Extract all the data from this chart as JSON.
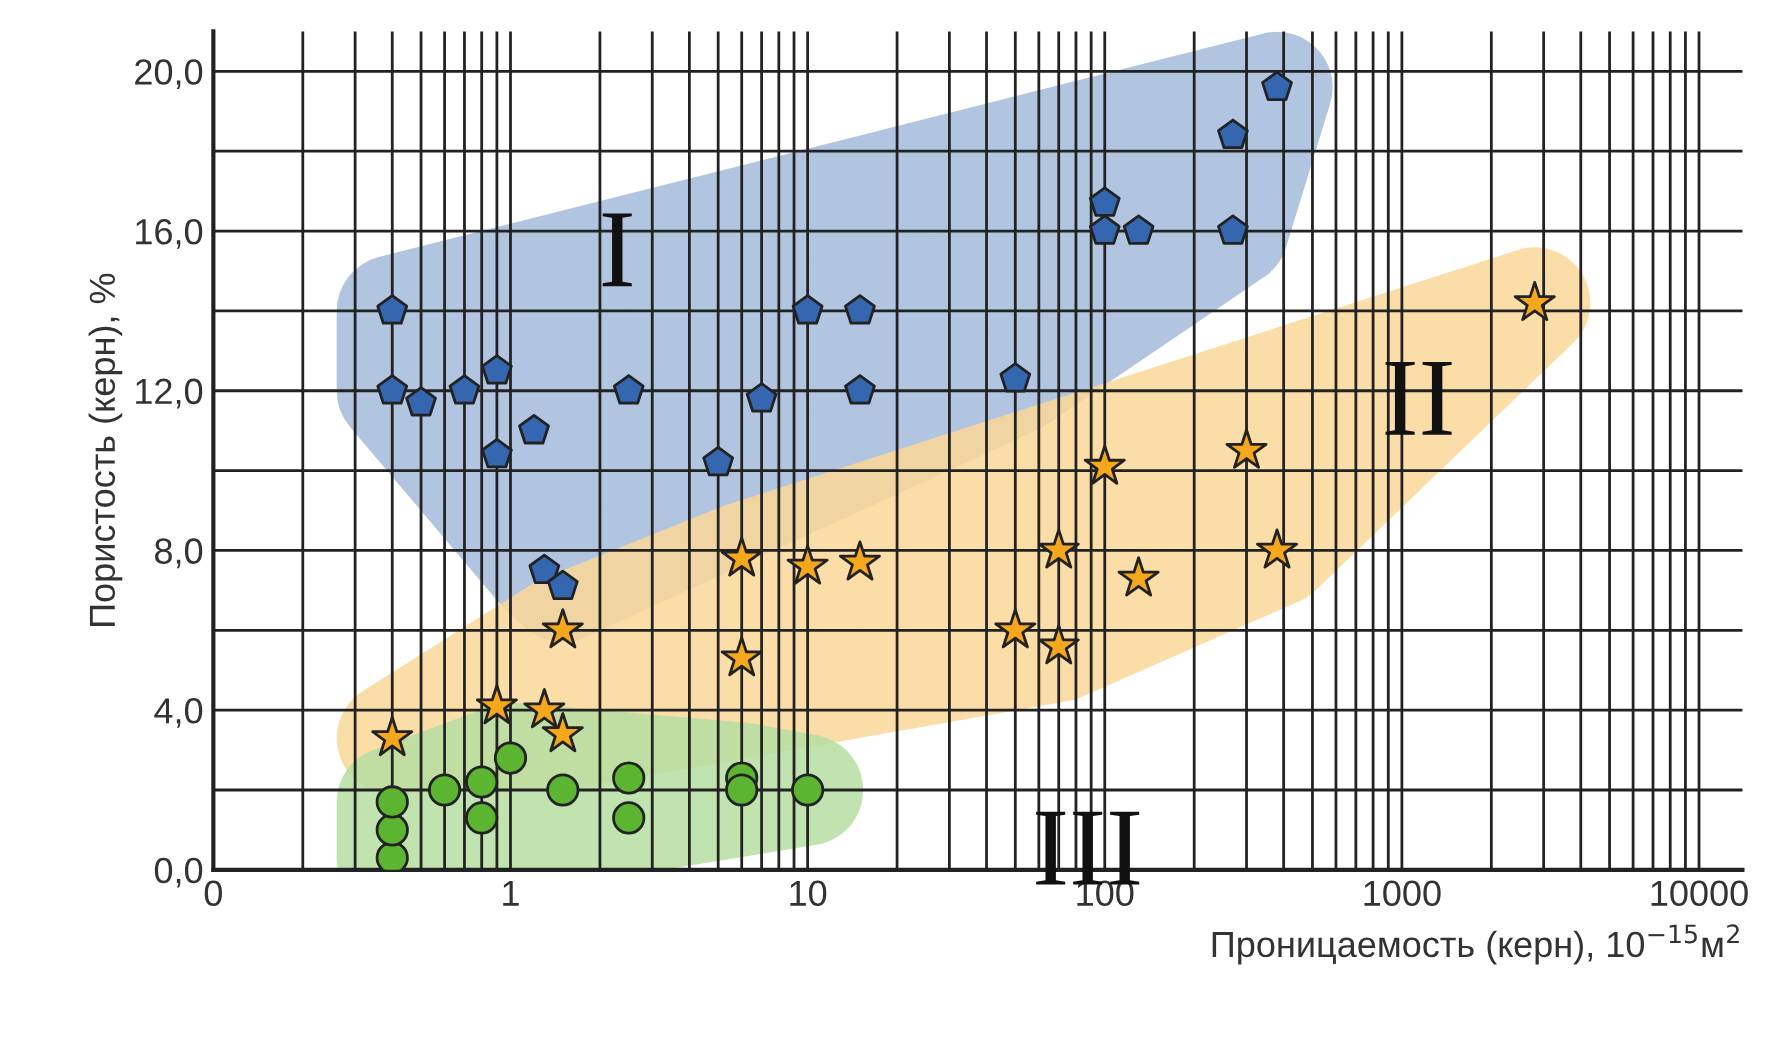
{
  "chart_data": {
    "type": "scatter",
    "xlabel": "Проницаемость (керн), 10$^{−15}$м$^{2}$",
    "ylabel": "Пористость (керн), %",
    "log": "x",
    "grid": true,
    "legend": false,
    "xlim": [
      0.1,
      14000
    ],
    "xticks": [
      {
        "value": 0.1,
        "label": "0"
      },
      1,
      10,
      100,
      1000,
      10000
    ],
    "ylim": [
      0,
      21
    ],
    "yticks": [
      {
        "value": 0,
        "label": "0,0"
      },
      {
        "value": 2,
        "label": null
      },
      {
        "value": 4,
        "label": "4,0"
      },
      {
        "value": 6,
        "label": null
      },
      {
        "value": 8,
        "label": "8,0"
      },
      {
        "value": 10,
        "label": null
      },
      {
        "value": 12,
        "label": "12,0"
      },
      {
        "value": 14,
        "label": null
      },
      {
        "value": 16,
        "label": "16,0"
      },
      {
        "value": 18,
        "label": null
      },
      {
        "value": 20,
        "label": "20,0"
      }
    ],
    "series": [
      {
        "color": "#3566b0",
        "x": [
          0.4,
          0.4,
          0.5,
          0.7,
          0.9,
          0.9,
          1.2,
          1.3,
          1.5,
          2.5,
          5,
          7,
          10,
          15,
          15,
          50,
          100,
          100,
          130,
          270,
          270,
          380
        ],
        "values": [
          14.0,
          12.0,
          11.7,
          12.0,
          12.5,
          10.4,
          11.0,
          7.5,
          7.1,
          12.0,
          10.2,
          11.8,
          14.0,
          14.0,
          12.0,
          12.3,
          16.7,
          16.0,
          16.0,
          18.4,
          16.0,
          19.6
        ]
      },
      {
        "color": "#f6a81c",
        "marker": "star",
        "x": [
          0.4,
          0.9,
          1.3,
          1.5,
          1.5,
          6,
          6,
          10,
          15,
          50,
          70,
          70,
          100,
          130,
          300,
          380,
          2800
        ],
        "values": [
          3.3,
          4.1,
          4.0,
          3.4,
          6.0,
          7.8,
          5.3,
          7.6,
          7.7,
          6.0,
          8.0,
          5.6,
          10.1,
          7.3,
          10.5,
          8.0,
          14.2
        ]
      },
      {
        "color": "#5cb531",
        "marker": "circle",
        "x": [
          0.4,
          0.4,
          0.4,
          0.6,
          0.8,
          0.8,
          1.0,
          1.5,
          2.5,
          2.5,
          6,
          6,
          10
        ],
        "values": [
          0.3,
          1.0,
          1.7,
          2.0,
          2.2,
          1.3,
          2.8,
          2.0,
          2.3,
          1.3,
          2.3,
          2.0,
          2.0
        ]
      }
    ],
    "annotations": [
      "I",
      "II",
      "III"
    ]
  }
}
